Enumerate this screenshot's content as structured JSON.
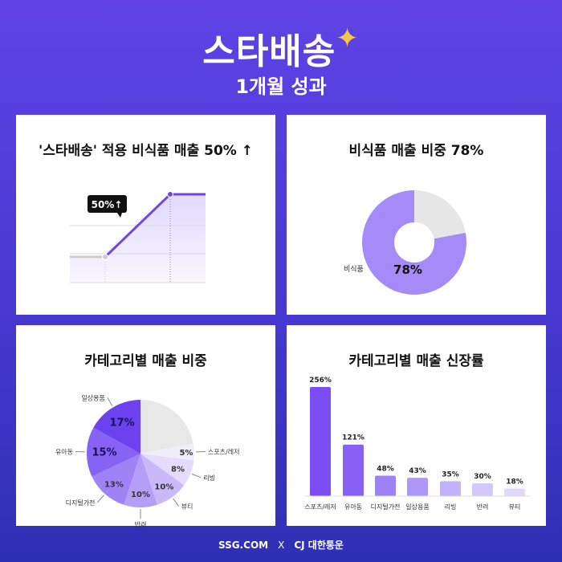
{
  "header": {
    "logo": "스타배송",
    "subtitle": "1개월 성과"
  },
  "cards": [
    {
      "title": "'스타배송' 적용 비식품 매출 50% ↑",
      "tooltip": "50%↑",
      "chart_data": {
        "type": "line",
        "series": [
          {
            "values": [
              1,
              1,
              1.5,
              1.5
            ]
          }
        ]
      }
    },
    {
      "title": "비식품 매출 비중 78%",
      "chart_data": {
        "type": "pie",
        "donut": true,
        "slices": [
          {
            "label": "비식품",
            "value": 78,
            "display": "78%",
            "color": "#a58bf7"
          },
          {
            "label": "",
            "value": 22,
            "color": "#e6e6e6"
          }
        ]
      }
    },
    {
      "title": "카테고리별 매출 비중",
      "chart_data": {
        "type": "pie",
        "slices": [
          {
            "label": "",
            "value": 22,
            "display": "",
            "color": "#e8e8e8"
          },
          {
            "label": "스포츠/레저",
            "value": 5,
            "display": "5%",
            "color": "#f1eefc"
          },
          {
            "label": "리빙",
            "value": 8,
            "display": "8%",
            "color": "#e4dcfc"
          },
          {
            "label": "뷰티",
            "value": 10,
            "display": "10%",
            "color": "#c9b9fa"
          },
          {
            "label": "반려",
            "value": 10,
            "display": "10%",
            "color": "#b39ef8"
          },
          {
            "label": "디지털가전",
            "value": 13,
            "display": "13%",
            "color": "#9f83f6"
          },
          {
            "label": "유아동",
            "value": 15,
            "display": "15%",
            "color": "#8763f3"
          },
          {
            "label": "일상용품",
            "value": 17,
            "display": "17%",
            "color": "#6c42ef"
          }
        ]
      }
    },
    {
      "title": "카테고리별 매출 신장률",
      "chart_data": {
        "type": "bar",
        "categories": [
          "스포츠/레저",
          "유아동",
          "디지털가전",
          "일상용품",
          "리빙",
          "반려",
          "뷰티"
        ],
        "values": [
          256,
          121,
          48,
          43,
          35,
          30,
          18
        ],
        "labels": [
          "256%",
          "121%",
          "48%",
          "43%",
          "35%",
          "30%",
          "18%"
        ],
        "colors": [
          "#7a4ef2",
          "#8661f3",
          "#9d82f6",
          "#ad97f7",
          "#c2b2f9",
          "#d3c8fb",
          "#e1d9fc"
        ]
      }
    }
  ],
  "footer": {
    "left": "SSG.COM",
    "x": "X",
    "right": "CJ 대한통운"
  }
}
